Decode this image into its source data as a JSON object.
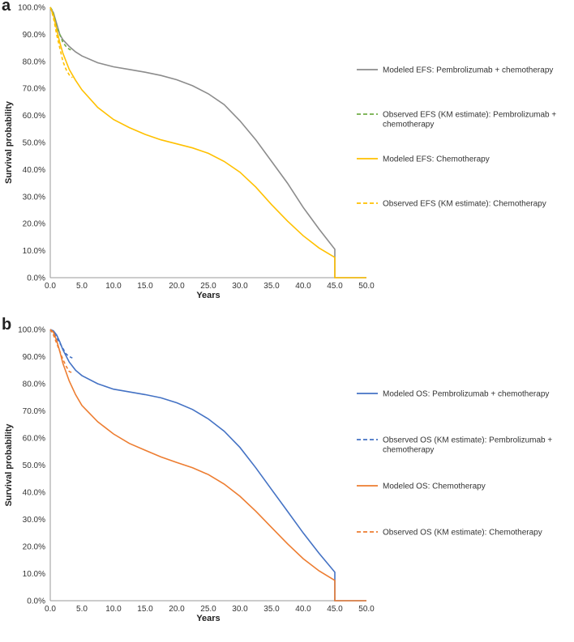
{
  "chart_data": [
    {
      "panel_label": "a",
      "type": "line",
      "xlabel": "Years",
      "ylabel": "Survival probability",
      "xlim": [
        0,
        50
      ],
      "ylim": [
        0,
        100
      ],
      "x_ticks": [
        0,
        5,
        10,
        15,
        20,
        25,
        30,
        35,
        40,
        45,
        50
      ],
      "x_tick_labels": [
        "0.0",
        "5.0",
        "10.0",
        "15.0",
        "20.0",
        "25.0",
        "30.0",
        "35.0",
        "40.0",
        "45.0",
        "50.0"
      ],
      "y_ticks": [
        0,
        10,
        20,
        30,
        40,
        50,
        60,
        70,
        80,
        90,
        100
      ],
      "y_tick_labels": [
        "0.0%",
        "10.0%",
        "20.0%",
        "30.0%",
        "40.0%",
        "50.0%",
        "60.0%",
        "70.0%",
        "80.0%",
        "90.0%",
        "100.0%"
      ],
      "legend_position": "right",
      "series": [
        {
          "name": "Modeled EFS: Pembrolizumab + chemotherapy",
          "style": "solid",
          "color": "#8c8c8c",
          "x": [
            0,
            0.5,
            1,
            1.5,
            2,
            3,
            4,
            5,
            7.5,
            10,
            12.5,
            15,
            17.5,
            20,
            22.5,
            25,
            27.5,
            30,
            32.5,
            35,
            37.5,
            40,
            42.5,
            45,
            45,
            50
          ],
          "y": [
            100,
            98,
            94,
            90,
            88,
            85.5,
            83.5,
            82,
            79.5,
            78,
            77,
            76,
            74.8,
            73.2,
            71,
            68,
            64,
            58,
            51,
            43,
            35,
            26,
            18,
            10.5,
            0,
            0
          ]
        },
        {
          "name": "Observed EFS (KM estimate): Pembrolizumab + chemotherapy",
          "style": "dashed",
          "color": "#70ad47",
          "x": [
            0,
            0.3,
            0.6,
            1,
            1.5,
            2,
            2.5,
            3,
            3.5
          ],
          "y": [
            100,
            99,
            97,
            93,
            90,
            87,
            85.5,
            84.5,
            84
          ]
        },
        {
          "name": "Modeled EFS: Chemotherapy",
          "style": "solid",
          "color": "#ffc000",
          "x": [
            0,
            0.5,
            1,
            1.5,
            2,
            3,
            4,
            5,
            7.5,
            10,
            12.5,
            15,
            17.5,
            20,
            22.5,
            25,
            27.5,
            30,
            32.5,
            35,
            37.5,
            40,
            42.5,
            45,
            45,
            50
          ],
          "y": [
            100,
            97,
            92,
            87,
            83,
            77,
            73,
            69.5,
            63,
            58.5,
            55.5,
            53,
            51,
            49.5,
            48,
            46,
            43,
            39,
            33.5,
            27,
            21,
            15.5,
            11,
            7.5,
            0,
            0
          ]
        },
        {
          "name": "Observed EFS (KM estimate): Chemotherapy",
          "style": "dashed",
          "color": "#ffc000",
          "x": [
            0,
            0.3,
            0.6,
            1,
            1.5,
            2,
            2.5,
            3,
            3.5
          ],
          "y": [
            100,
            98,
            95,
            90,
            85,
            80,
            77,
            75,
            74
          ]
        }
      ]
    },
    {
      "panel_label": "b",
      "type": "line",
      "xlabel": "Years",
      "ylabel": "Survival probability",
      "xlim": [
        0,
        50
      ],
      "ylim": [
        0,
        100
      ],
      "x_ticks": [
        0,
        5,
        10,
        15,
        20,
        25,
        30,
        35,
        40,
        45,
        50
      ],
      "x_tick_labels": [
        "0.0",
        "5.0",
        "10.0",
        "15.0",
        "20.0",
        "25.0",
        "30.0",
        "35.0",
        "40.0",
        "45.0",
        "50.0"
      ],
      "y_ticks": [
        0,
        10,
        20,
        30,
        40,
        50,
        60,
        70,
        80,
        90,
        100
      ],
      "y_tick_labels": [
        "0.0%",
        "10.0%",
        "20.0%",
        "30.0%",
        "40.0%",
        "50.0%",
        "60.0%",
        "70.0%",
        "80.0%",
        "90.0%",
        "100.0%"
      ],
      "legend_position": "right",
      "series": [
        {
          "name": "Modeled OS: Pembrolizumab + chemotherapy",
          "style": "solid",
          "color": "#4472c4",
          "x": [
            0,
            0.5,
            1,
            1.5,
            2,
            3,
            4,
            5,
            7.5,
            10,
            12.5,
            15,
            17.5,
            20,
            22.5,
            25,
            27.5,
            30,
            32.5,
            35,
            37.5,
            40,
            42.5,
            45,
            45,
            50
          ],
          "y": [
            100,
            99.5,
            98,
            95.5,
            92.5,
            88,
            85,
            83,
            80,
            78,
            77,
            76,
            74.8,
            73,
            70.5,
            67,
            62.5,
            56.5,
            49,
            41,
            33,
            25,
            17.5,
            10.5,
            0,
            0
          ]
        },
        {
          "name": "Observed OS (KM estimate): Pembrolizumab + chemotherapy",
          "style": "dashed",
          "color": "#4472c4",
          "x": [
            0,
            0.5,
            1,
            1.5,
            2,
            2.5,
            3,
            3.5
          ],
          "y": [
            100,
            99,
            97,
            95,
            93,
            91,
            90,
            89.5
          ]
        },
        {
          "name": "Modeled OS: Chemotherapy",
          "style": "solid",
          "color": "#ed7d31",
          "x": [
            0,
            0.5,
            1,
            1.5,
            2,
            3,
            4,
            5,
            7.5,
            10,
            12.5,
            15,
            17.5,
            20,
            22.5,
            25,
            27.5,
            30,
            32.5,
            35,
            37.5,
            40,
            42.5,
            45,
            45,
            50
          ],
          "y": [
            100,
            99,
            96,
            92,
            87.5,
            81,
            76,
            72,
            66,
            61.5,
            58,
            55.5,
            53,
            51,
            49,
            46.5,
            43,
            38.5,
            33,
            27,
            21,
            15.5,
            11,
            7.5,
            0,
            0
          ]
        },
        {
          "name": "Observed OS (KM estimate): Chemotherapy",
          "style": "dashed",
          "color": "#ed7d31",
          "x": [
            0,
            0.5,
            1,
            1.5,
            2,
            2.5,
            3,
            3.5
          ],
          "y": [
            100,
            98,
            95,
            92,
            89,
            86.5,
            84.5,
            84
          ]
        }
      ]
    }
  ]
}
